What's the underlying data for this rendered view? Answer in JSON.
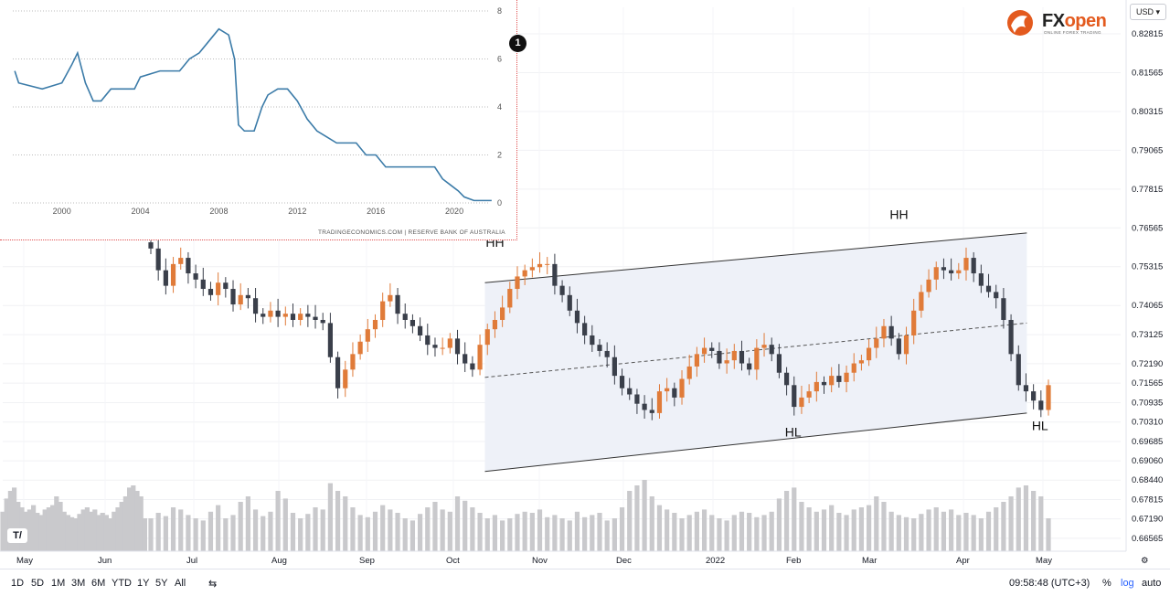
{
  "chart_data": [
    {
      "type": "candlestick",
      "title": "",
      "ylim": [
        0.6615,
        0.8367
      ],
      "y_ticks": [
        "0.82815",
        "0.81565",
        "0.80315",
        "0.79065",
        "0.77815",
        "0.76565",
        "0.75315",
        "0.74065",
        "0.73125",
        "0.72190",
        "0.71565",
        "0.70935",
        "0.70310",
        "0.69685",
        "0.69060",
        "0.68440",
        "0.67815",
        "0.67190",
        "0.66565"
      ],
      "y_tick_values": [
        0.82815,
        0.81565,
        0.80315,
        0.79065,
        0.77815,
        0.76565,
        0.75315,
        0.74065,
        0.73125,
        0.7219,
        0.71565,
        0.70935,
        0.7031,
        0.69685,
        0.6906,
        0.6844,
        0.67815,
        0.6719,
        0.66565
      ],
      "x_ticks": [
        "May",
        "Jun",
        "Jul",
        "Aug",
        "Sep",
        "Oct",
        "Nov",
        "Dec",
        "2022",
        "Feb",
        "Mar",
        "Apr",
        "May"
      ],
      "grid": true,
      "currency_button": "USD",
      "closes": [
        0.759,
        0.752,
        0.747,
        0.754,
        0.756,
        0.751,
        0.749,
        0.746,
        0.744,
        0.748,
        0.746,
        0.741,
        0.744,
        0.743,
        0.738,
        0.737,
        0.739,
        0.737,
        0.738,
        0.736,
        0.738,
        0.737,
        0.736,
        0.735,
        0.724,
        0.714,
        0.72,
        0.725,
        0.729,
        0.733,
        0.736,
        0.742,
        0.744,
        0.738,
        0.736,
        0.734,
        0.731,
        0.728,
        0.727,
        0.727,
        0.73,
        0.725,
        0.722,
        0.72,
        0.728,
        0.733,
        0.736,
        0.74,
        0.746,
        0.75,
        0.752,
        0.753,
        0.754,
        0.754,
        0.747,
        0.744,
        0.739,
        0.735,
        0.731,
        0.728,
        0.726,
        0.724,
        0.718,
        0.714,
        0.712,
        0.709,
        0.707,
        0.706,
        0.713,
        0.714,
        0.711,
        0.717,
        0.721,
        0.725,
        0.727,
        0.726,
        0.722,
        0.723,
        0.726,
        0.722,
        0.72,
        0.727,
        0.728,
        0.725,
        0.719,
        0.715,
        0.708,
        0.711,
        0.713,
        0.716,
        0.715,
        0.718,
        0.716,
        0.719,
        0.722,
        0.723,
        0.727,
        0.73,
        0.734,
        0.73,
        0.725,
        0.731,
        0.739,
        0.745,
        0.749,
        0.753,
        0.752,
        0.751,
        0.752,
        0.756,
        0.751,
        0.747,
        0.745,
        0.743,
        0.736,
        0.725,
        0.715,
        0.713,
        0.71,
        0.707,
        0.715
      ],
      "volumes": [
        0.3,
        0.35,
        0.32,
        0.4,
        0.38,
        0.33,
        0.3,
        0.28,
        0.36,
        0.42,
        0.3,
        0.33,
        0.45,
        0.5,
        0.38,
        0.32,
        0.36,
        0.55,
        0.48,
        0.35,
        0.3,
        0.34,
        0.4,
        0.38,
        0.62,
        0.55,
        0.5,
        0.4,
        0.33,
        0.31,
        0.36,
        0.42,
        0.38,
        0.35,
        0.3,
        0.28,
        0.34,
        0.4,
        0.45,
        0.38,
        0.36,
        0.5,
        0.46,
        0.4,
        0.35,
        0.3,
        0.33,
        0.28,
        0.3,
        0.34,
        0.36,
        0.35,
        0.38,
        0.31,
        0.33,
        0.3,
        0.28,
        0.36,
        0.31,
        0.33,
        0.35,
        0.28,
        0.3,
        0.4,
        0.55,
        0.6,
        0.65,
        0.5,
        0.42,
        0.38,
        0.35,
        0.3,
        0.33,
        0.36,
        0.38,
        0.33,
        0.3,
        0.28,
        0.33,
        0.36,
        0.35,
        0.31,
        0.33,
        0.36,
        0.48,
        0.55,
        0.58,
        0.45,
        0.4,
        0.36,
        0.38,
        0.42,
        0.35,
        0.33,
        0.38,
        0.4,
        0.42,
        0.5,
        0.45,
        0.36,
        0.33,
        0.31,
        0.3,
        0.34,
        0.38,
        0.4,
        0.36,
        0.38,
        0.33,
        0.35,
        0.33,
        0.3,
        0.36,
        0.4,
        0.45,
        0.5,
        0.58,
        0.6,
        0.55,
        0.5,
        0.3
      ],
      "annotations": [
        {
          "label": "HH",
          "x": 46,
          "y": 0.7595
        },
        {
          "label": "HH",
          "x": 100,
          "y": 0.7685
        },
        {
          "label": "HL",
          "x": 86,
          "y": 0.6985
        },
        {
          "label": "HL",
          "x": 119,
          "y": 0.7005
        }
      ],
      "channel": {
        "upper": [
          [
            30,
            0.748
          ],
          [
            122,
            0.764
          ]
        ],
        "lower": [
          [
            30,
            0.6872
          ],
          [
            122,
            0.706
          ]
        ],
        "mid": [
          [
            30,
            0.7175
          ],
          [
            122,
            0.735
          ]
        ]
      }
    },
    {
      "type": "line",
      "title": "",
      "x_ticks": [
        "2000",
        "2004",
        "2008",
        "2012",
        "2016",
        "2020"
      ],
      "y_ticks": [
        "8",
        "6",
        "4",
        "2",
        "0"
      ],
      "ylim": [
        0,
        8
      ],
      "xlim": [
        1997.5,
        2022.0
      ],
      "x": [
        1997.6,
        1997.8,
        1999.0,
        2000.0,
        2000.5,
        2000.8,
        2001.2,
        2001.6,
        2002.0,
        2002.5,
        2003.0,
        2003.7,
        2004.0,
        2005.0,
        2006.0,
        2006.5,
        2007.0,
        2007.5,
        2008.0,
        2008.5,
        2008.8,
        2009.0,
        2009.3,
        2009.8,
        2010.2,
        2010.5,
        2011.0,
        2011.5,
        2012.0,
        2012.5,
        2013.0,
        2013.5,
        2014.0,
        2015.0,
        2015.5,
        2016.0,
        2016.5,
        2017.0,
        2018.0,
        2019.0,
        2019.4,
        2019.8,
        2020.2,
        2020.5,
        2021.0,
        2021.5,
        2021.9
      ],
      "values": [
        5.5,
        5.0,
        4.75,
        5.0,
        5.75,
        6.25,
        5.0,
        4.25,
        4.25,
        4.75,
        4.75,
        4.75,
        5.25,
        5.5,
        5.5,
        6.0,
        6.25,
        6.75,
        7.25,
        7.0,
        6.0,
        3.25,
        3.0,
        3.0,
        4.0,
        4.5,
        4.75,
        4.75,
        4.25,
        3.5,
        3.0,
        2.75,
        2.5,
        2.5,
        2.0,
        2.0,
        1.5,
        1.5,
        1.5,
        1.5,
        1.0,
        0.75,
        0.5,
        0.25,
        0.1,
        0.1,
        0.1
      ],
      "source_text": "TRADINGECONOMICS.COM  |  RESERVE BANK OF AUSTRALIA",
      "marker_label": "1"
    }
  ],
  "logo": {
    "text": "FXopen",
    "subtext": "ONLINE FOREX TRADING"
  },
  "bottom_bar": {
    "timeframes": [
      "1D",
      "5D",
      "1M",
      "3M",
      "6M",
      "YTD",
      "1Y",
      "5Y",
      "All"
    ],
    "clock": "09:58:48 (UTC+3)",
    "percent": "%",
    "log": "log",
    "auto": "auto"
  },
  "tv_logo": "T/",
  "colors": {
    "up": "#e07b39",
    "down": "#3a3f4a",
    "volume": "#c9c9cc",
    "channel_fill": "#eef1f8",
    "inset_line": "#3b7ba8"
  }
}
